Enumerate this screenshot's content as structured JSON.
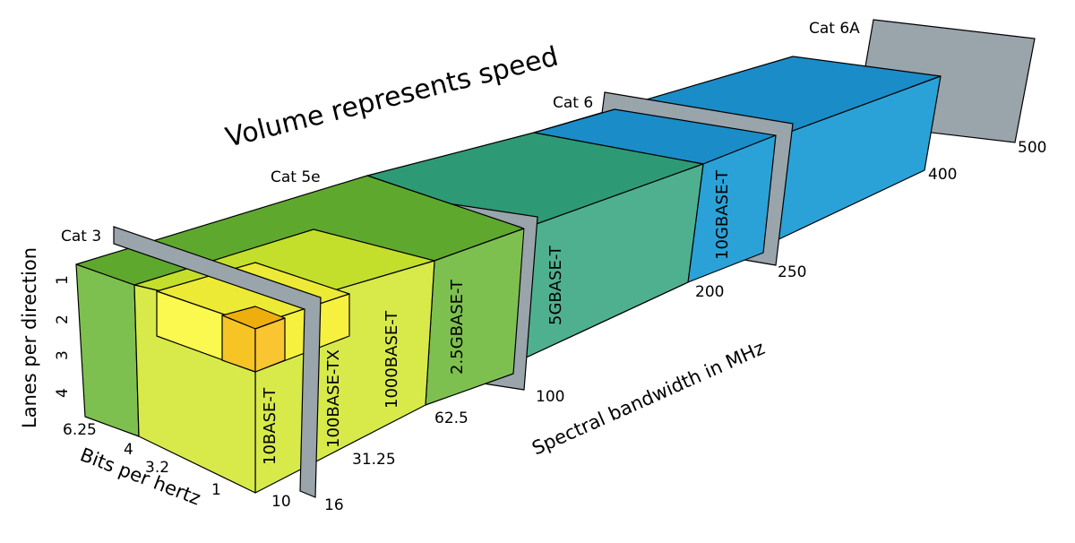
{
  "title": "Volume represents speed",
  "axes": {
    "lanes_label": "Lanes per direction",
    "bits_label": "Bits per hertz",
    "bandwidth_label": "Spectral bandwidth in MHz"
  },
  "lanes_ticks": [
    "1",
    "2",
    "3",
    "4"
  ],
  "bits_ticks": [
    "6.25",
    "4",
    "3.2",
    "1"
  ],
  "bandwidth_ticks": [
    "10",
    "16",
    "31.25",
    "62.5",
    "100",
    "200",
    "250",
    "400",
    "500"
  ],
  "categories": [
    "Cat 3",
    "Cat 5e",
    "Cat 6",
    "Cat 6A"
  ],
  "standards": [
    "10BASE-T",
    "100BASE-TX",
    "1000BASE-T",
    "2.5GBASE-T",
    "5GBASE-T",
    "10GBASE-T"
  ],
  "colors": {
    "cat6a_blue": "#2ea3d8",
    "cat6_blue": "#2aa5dc",
    "teal": "#4fb08f",
    "green": "#7ec04f",
    "lime": "#d7ea4a",
    "yellow": "#f6f13e",
    "orange": "#f6c425",
    "plate": "#99a4ab"
  }
}
